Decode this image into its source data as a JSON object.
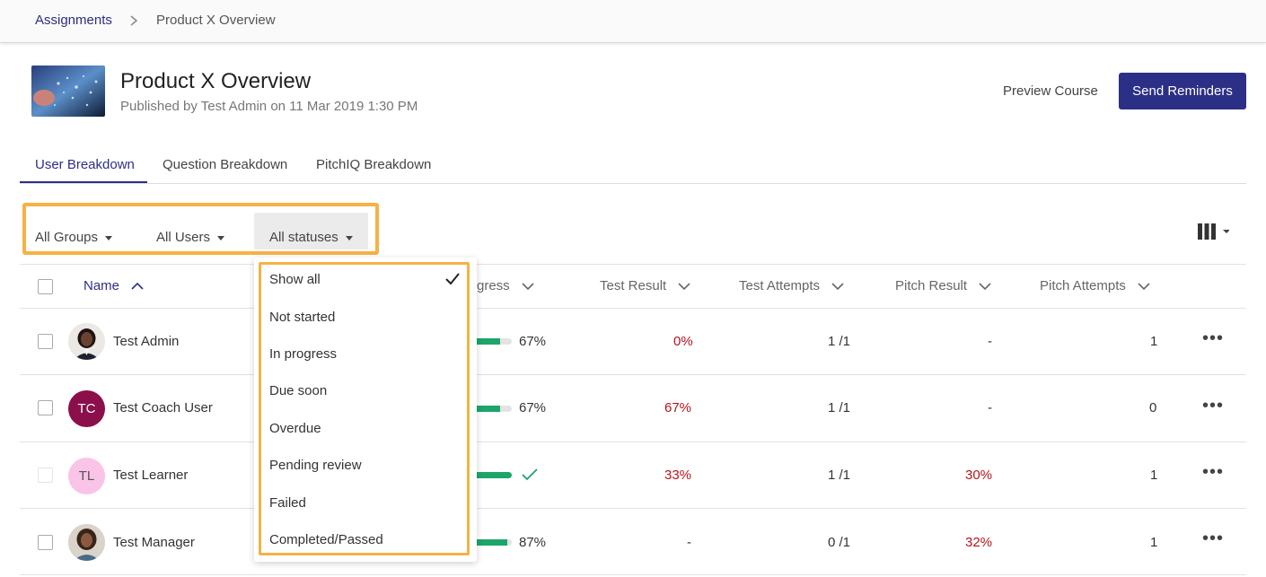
{
  "breadcrumb": {
    "parent": "Assignments",
    "current": "Product X Overview"
  },
  "header": {
    "title": "Product X Overview",
    "subtitle": "Published by Test Admin on 11 Mar 2019 1:30 PM",
    "preview_label": "Preview Course",
    "send_label": "Send Reminders"
  },
  "tabs": [
    "User Breakdown",
    "Question Breakdown",
    "PitchIQ Breakdown"
  ],
  "filters": {
    "groups": "All Groups",
    "users": "All Users",
    "statuses": "All statuses"
  },
  "columns": {
    "name": "Name",
    "progress_partial": "gress",
    "test_result": "Test Result",
    "test_attempts": "Test Attempts",
    "pitch_result": "Pitch Result",
    "pitch_attempts": "Pitch Attempts"
  },
  "rows": [
    {
      "name": "Test Admin",
      "initials": "",
      "progress": 0.67,
      "progress_text": "67%",
      "test_result": "0%",
      "test_attempts": "1 /1",
      "pitch_result": "-",
      "pitch_attempts": "1"
    },
    {
      "name": "Test Coach User",
      "initials": "TC",
      "progress": 0.67,
      "progress_text": "67%",
      "test_result": "67%",
      "test_attempts": "1 /1",
      "pitch_result": "-",
      "pitch_attempts": "0"
    },
    {
      "name": "Test Learner",
      "initials": "TL",
      "progress": 1.0,
      "progress_text": "",
      "test_result": "33%",
      "test_attempts": "1 /1",
      "pitch_result": "30%",
      "pitch_attempts": "1"
    },
    {
      "name": "Test Manager",
      "initials": "",
      "progress": 0.87,
      "progress_text": "87%",
      "test_result": "-",
      "test_attempts": "0 /1",
      "pitch_result": "32%",
      "pitch_attempts": "1"
    }
  ],
  "status_options": [
    "Show all",
    "Not started",
    "In progress",
    "Due soon",
    "Overdue",
    "Pending review",
    "Failed",
    "Completed/Passed"
  ],
  "selected_status": "Show all",
  "colors": {
    "brand": "#2c2f86",
    "highlight": "#f5b245",
    "negative": "#b3141d",
    "progress": "#1fa46b"
  }
}
